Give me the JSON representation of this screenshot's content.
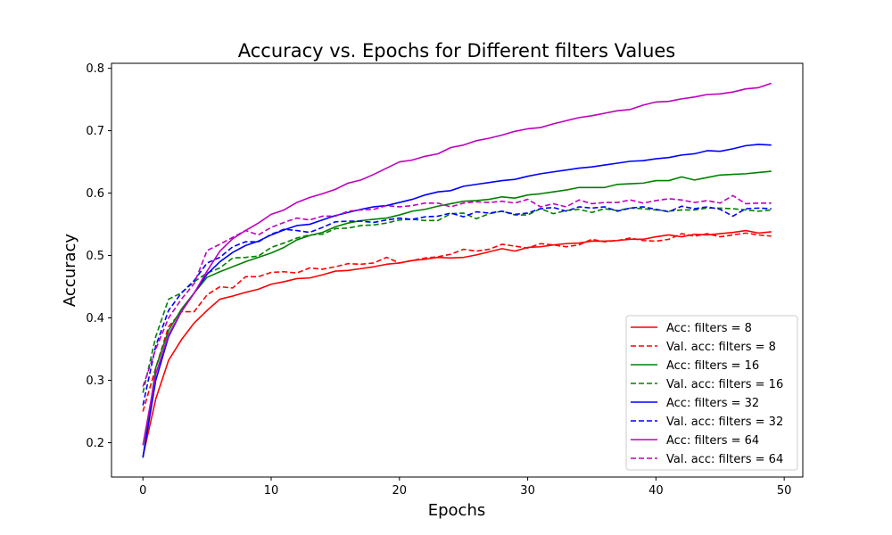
{
  "chart_data": {
    "type": "line",
    "title": "Accuracy vs. Epochs for Different filters Values",
    "xlabel": "Epochs",
    "ylabel": "Accuracy",
    "xlim": [
      -2.45,
      51.45
    ],
    "ylim": [
      0.145,
      0.808
    ],
    "xticks": [
      0,
      10,
      20,
      30,
      40,
      50
    ],
    "yticks": [
      0.2,
      0.3,
      0.4,
      0.5,
      0.6,
      0.7,
      0.8
    ],
    "grid": false,
    "legend_position": "lower-right",
    "colors": {
      "red": "#ff0000",
      "green": "#008000",
      "blue": "#0000ff",
      "magenta": "#bf00bf"
    },
    "x": [
      0,
      1,
      2,
      3,
      4,
      5,
      6,
      7,
      8,
      9,
      10,
      11,
      12,
      13,
      14,
      15,
      16,
      17,
      18,
      19,
      20,
      21,
      22,
      23,
      24,
      25,
      26,
      27,
      28,
      29,
      30,
      31,
      32,
      33,
      34,
      35,
      36,
      37,
      38,
      39,
      40,
      41,
      42,
      43,
      44,
      45,
      46,
      47,
      48,
      49
    ],
    "series": [
      {
        "name": "Acc: filters = 8",
        "color": "#ff0000",
        "style": "solid",
        "values": [
          0.178,
          0.27,
          0.332,
          0.365,
          0.392,
          0.412,
          0.43,
          0.435,
          0.441,
          0.446,
          0.454,
          0.458,
          0.463,
          0.464,
          0.469,
          0.475,
          0.476,
          0.479,
          0.482,
          0.486,
          0.488,
          0.492,
          0.494,
          0.497,
          0.496,
          0.497,
          0.501,
          0.506,
          0.511,
          0.507,
          0.513,
          0.514,
          0.517,
          0.519,
          0.52,
          0.523,
          0.523,
          0.524,
          0.526,
          0.526,
          0.53,
          0.533,
          0.53,
          0.534,
          0.533,
          0.535,
          0.537,
          0.54,
          0.536,
          0.538
        ]
      },
      {
        "name": "Val. acc: filters = 8",
        "color": "#ff0000",
        "style": "dashed",
        "values": [
          0.25,
          0.32,
          0.386,
          0.41,
          0.41,
          0.437,
          0.45,
          0.448,
          0.466,
          0.466,
          0.473,
          0.474,
          0.472,
          0.48,
          0.478,
          0.482,
          0.487,
          0.486,
          0.488,
          0.497,
          0.488,
          0.492,
          0.496,
          0.498,
          0.502,
          0.51,
          0.507,
          0.51,
          0.518,
          0.515,
          0.512,
          0.519,
          0.517,
          0.514,
          0.517,
          0.526,
          0.522,
          0.524,
          0.528,
          0.524,
          0.523,
          0.526,
          0.535,
          0.531,
          0.535,
          0.53,
          0.533,
          0.536,
          0.533,
          0.531
        ]
      },
      {
        "name": "Acc: filters = 16",
        "color": "#008000",
        "style": "solid",
        "values": [
          0.176,
          0.32,
          0.38,
          0.414,
          0.44,
          0.465,
          0.474,
          0.482,
          0.49,
          0.497,
          0.504,
          0.513,
          0.525,
          0.532,
          0.537,
          0.546,
          0.552,
          0.556,
          0.558,
          0.56,
          0.565,
          0.571,
          0.574,
          0.579,
          0.583,
          0.587,
          0.588,
          0.59,
          0.594,
          0.592,
          0.597,
          0.599,
          0.602,
          0.605,
          0.609,
          0.609,
          0.609,
          0.614,
          0.615,
          0.616,
          0.62,
          0.62,
          0.626,
          0.621,
          0.625,
          0.629,
          0.63,
          0.631,
          0.633,
          0.635
        ]
      },
      {
        "name": "Val. acc: filters = 16",
        "color": "#008000",
        "style": "dashed",
        "values": [
          0.28,
          0.37,
          0.43,
          0.44,
          0.458,
          0.472,
          0.48,
          0.496,
          0.497,
          0.499,
          0.513,
          0.52,
          0.528,
          0.533,
          0.534,
          0.543,
          0.544,
          0.548,
          0.549,
          0.552,
          0.557,
          0.558,
          0.556,
          0.556,
          0.567,
          0.568,
          0.559,
          0.567,
          0.571,
          0.565,
          0.565,
          0.575,
          0.567,
          0.572,
          0.574,
          0.569,
          0.575,
          0.572,
          0.576,
          0.575,
          0.573,
          0.571,
          0.573,
          0.573,
          0.576,
          0.576,
          0.575,
          0.573,
          0.571,
          0.573
        ]
      },
      {
        "name": "Acc: filters = 32",
        "color": "#0000ff",
        "style": "solid",
        "values": [
          0.176,
          0.3,
          0.37,
          0.41,
          0.44,
          0.47,
          0.49,
          0.505,
          0.516,
          0.523,
          0.533,
          0.541,
          0.548,
          0.55,
          0.557,
          0.564,
          0.569,
          0.574,
          0.578,
          0.58,
          0.585,
          0.59,
          0.597,
          0.602,
          0.604,
          0.611,
          0.614,
          0.617,
          0.62,
          0.622,
          0.627,
          0.631,
          0.634,
          0.637,
          0.64,
          0.642,
          0.645,
          0.648,
          0.651,
          0.652,
          0.655,
          0.657,
          0.661,
          0.663,
          0.668,
          0.667,
          0.671,
          0.676,
          0.678,
          0.677
        ]
      },
      {
        "name": "Val. acc: filters = 32",
        "color": "#0000ff",
        "style": "dashed",
        "values": [
          0.26,
          0.355,
          0.412,
          0.44,
          0.46,
          0.488,
          0.497,
          0.514,
          0.522,
          0.522,
          0.534,
          0.542,
          0.54,
          0.537,
          0.545,
          0.554,
          0.555,
          0.555,
          0.553,
          0.557,
          0.56,
          0.558,
          0.562,
          0.563,
          0.568,
          0.562,
          0.57,
          0.568,
          0.571,
          0.566,
          0.568,
          0.575,
          0.577,
          0.571,
          0.578,
          0.576,
          0.578,
          0.571,
          0.576,
          0.578,
          0.574,
          0.57,
          0.579,
          0.575,
          0.578,
          0.574,
          0.563,
          0.575,
          0.576,
          0.575
        ]
      },
      {
        "name": "Acc: filters = 64",
        "color": "#bf00bf",
        "style": "solid",
        "values": [
          0.196,
          0.31,
          0.373,
          0.41,
          0.44,
          0.475,
          0.507,
          0.527,
          0.54,
          0.552,
          0.566,
          0.573,
          0.585,
          0.593,
          0.599,
          0.606,
          0.616,
          0.621,
          0.63,
          0.64,
          0.65,
          0.653,
          0.659,
          0.663,
          0.673,
          0.677,
          0.684,
          0.688,
          0.693,
          0.699,
          0.703,
          0.705,
          0.711,
          0.716,
          0.721,
          0.724,
          0.728,
          0.732,
          0.734,
          0.741,
          0.746,
          0.747,
          0.751,
          0.754,
          0.758,
          0.759,
          0.762,
          0.767,
          0.769,
          0.776
        ]
      },
      {
        "name": "Val. acc: filters = 64",
        "color": "#bf00bf",
        "style": "dashed",
        "values": [
          0.29,
          0.35,
          0.4,
          0.43,
          0.455,
          0.508,
          0.518,
          0.529,
          0.54,
          0.533,
          0.545,
          0.553,
          0.56,
          0.557,
          0.563,
          0.563,
          0.571,
          0.573,
          0.574,
          0.58,
          0.578,
          0.58,
          0.584,
          0.584,
          0.578,
          0.584,
          0.586,
          0.585,
          0.587,
          0.584,
          0.59,
          0.578,
          0.583,
          0.578,
          0.589,
          0.583,
          0.585,
          0.585,
          0.589,
          0.584,
          0.588,
          0.591,
          0.589,
          0.585,
          0.588,
          0.584,
          0.596,
          0.583,
          0.584,
          0.584
        ]
      }
    ]
  }
}
